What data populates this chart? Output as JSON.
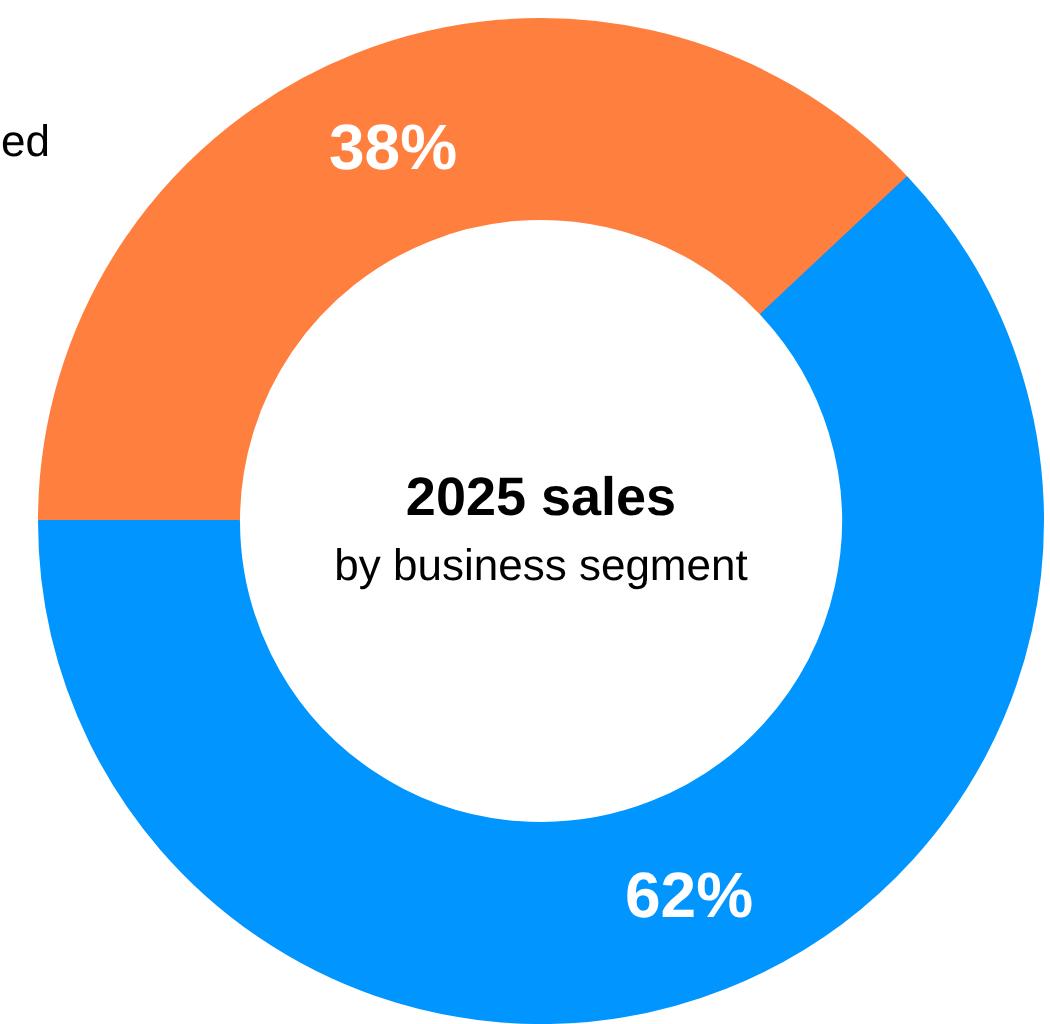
{
  "chart_data": {
    "type": "donut",
    "title": "2025 sales",
    "subtitle": "by business segment",
    "categories": [
      null,
      null
    ],
    "values": [
      38,
      62
    ],
    "colors": [
      "#ff7f3f",
      "#0095ff"
    ],
    "value_labels": [
      "38%",
      "62%"
    ],
    "annotations": [
      "ed"
    ]
  }
}
